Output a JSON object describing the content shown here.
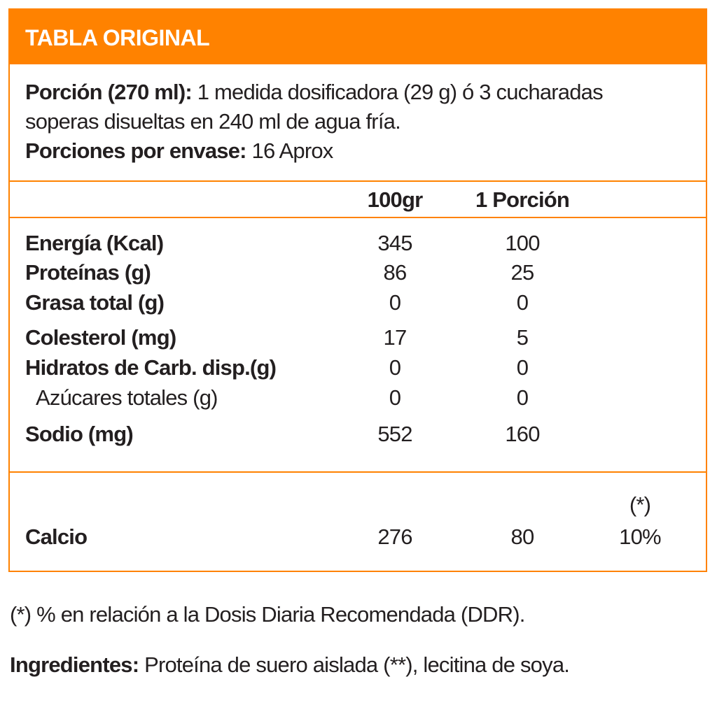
{
  "title": "TABLA ORIGINAL",
  "serving": {
    "label": "Porción (270 ml):",
    "text_line1": "1 medida dosificadora (29 g) ó 3 cucharadas",
    "text_line2": "soperas disueltas en 240 ml de agua fría.",
    "per_container_label": "Porciones por envase:",
    "per_container_value": "16 Aprox"
  },
  "columns": {
    "per100": "100gr",
    "per_serving": "1 Porción"
  },
  "rows": [
    {
      "label": "Energía (Kcal)",
      "per100": "345",
      "per_serving": "100"
    },
    {
      "label": "Proteínas (g)",
      "per100": "86",
      "per_serving": "25"
    },
    {
      "label": "Grasa total (g)",
      "per100": "0",
      "per_serving": "0"
    },
    {
      "label": "Colesterol (mg)",
      "per100": "17",
      "per_serving": "5"
    },
    {
      "label": "Hidratos de Carb. disp.(g)",
      "per100": "0",
      "per_serving": "0"
    },
    {
      "label": "Azúcares totales (g)",
      "per100": "0",
      "per_serving": "0"
    },
    {
      "label": "Sodio (mg)",
      "per100": "552",
      "per_serving": "160"
    }
  ],
  "calcium": {
    "label": "Calcio",
    "per100": "276",
    "per_serving": "80",
    "ddr_mark": "(*)",
    "ddr": "10%"
  },
  "footnote": "(*) % en relación a la Dosis Diaria Recomendada (DDR).",
  "ingredients": {
    "label": "Ingredientes:",
    "text": "Proteína de suero aislada (**), lecitina de soya."
  },
  "colors": {
    "accent": "#ff8200"
  }
}
